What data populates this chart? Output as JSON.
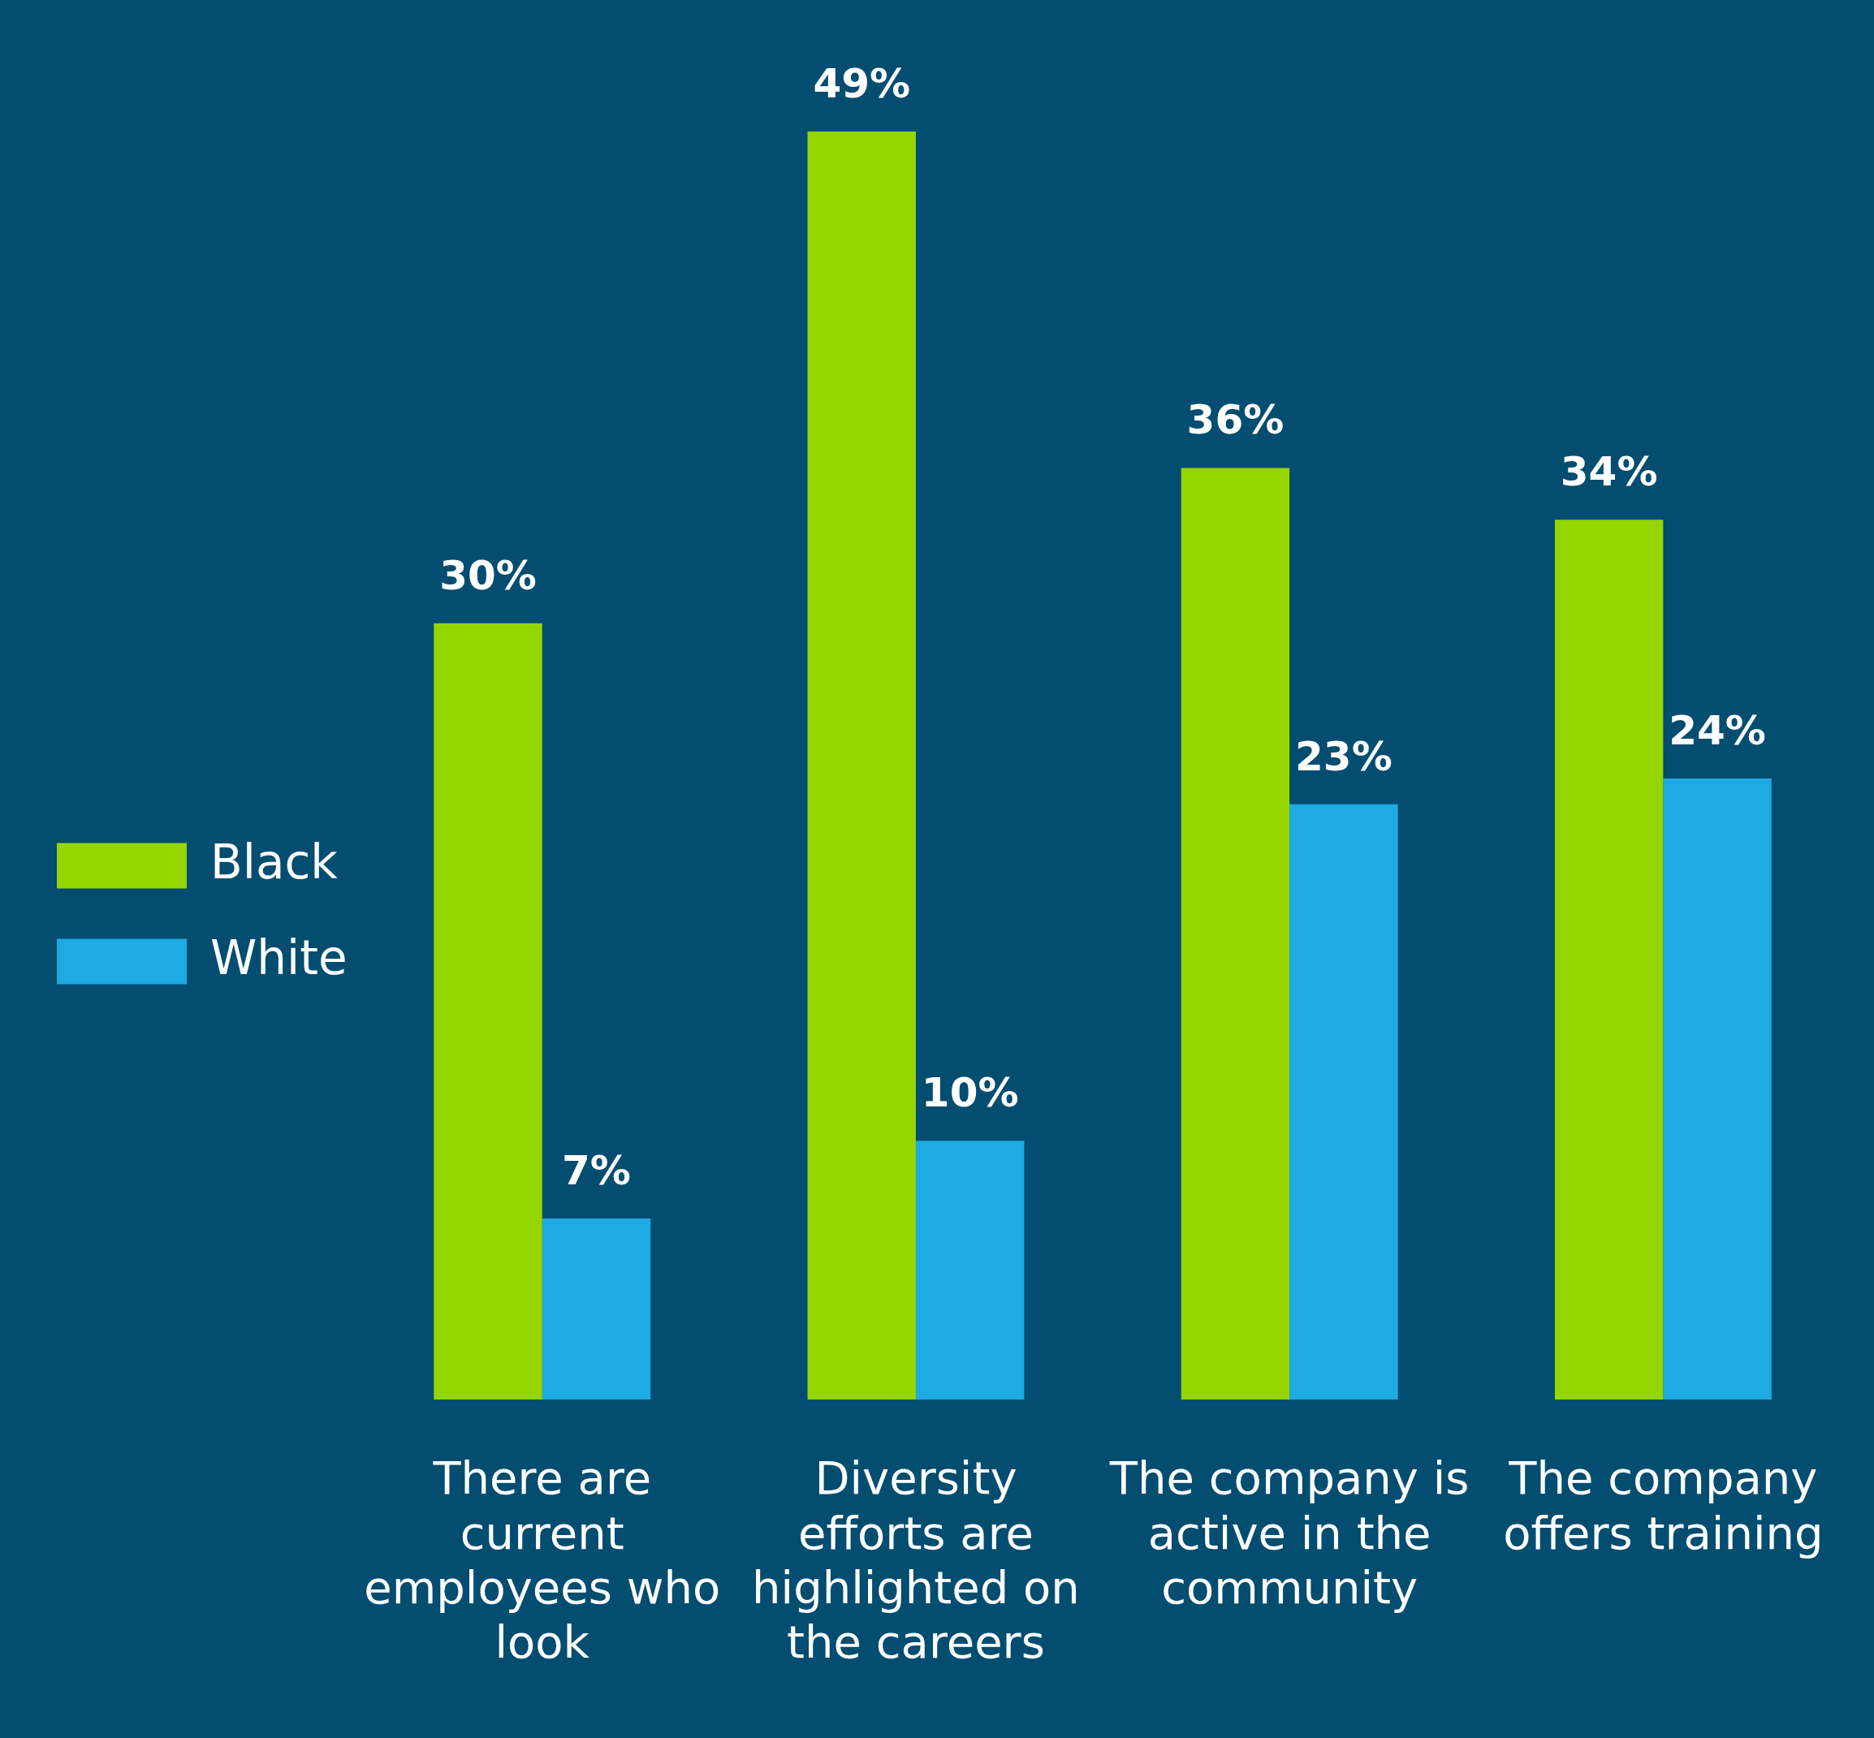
{
  "chart_data": {
    "type": "bar",
    "categories": [
      "There are current employees who look",
      "Diversity efforts are highlighted on the careers",
      "The company is active in the community",
      "The company offers training"
    ],
    "series": [
      {
        "name": "Black",
        "color": "#95d500",
        "values": [
          30,
          49,
          36,
          34
        ],
        "value_labels": [
          "30%",
          "49%",
          "36%",
          "34%"
        ]
      },
      {
        "name": "White",
        "color": "#1eaae2",
        "values": [
          7,
          10,
          23,
          24
        ],
        "value_labels": [
          "7%",
          "10%",
          "23%",
          "24%"
        ]
      }
    ],
    "legend": "left",
    "grid": false
  }
}
